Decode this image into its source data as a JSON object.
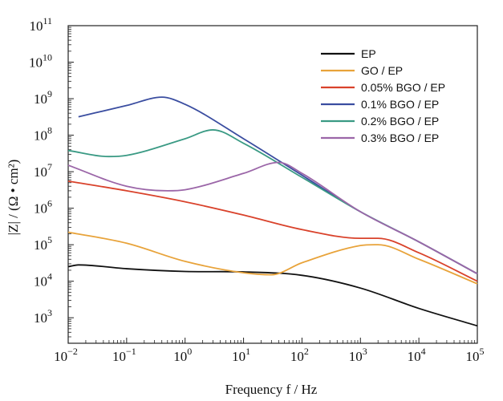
{
  "chart_data": {
    "type": "line",
    "xlabel": "Frequency f / Hz",
    "ylabel": "|Z| / (Ω • cm²)",
    "x_scale": "log",
    "y_scale": "log",
    "xlim": [
      0.01,
      100000
    ],
    "ylim": [
      200,
      100000000000
    ],
    "grid": false,
    "legend_position": "top-right",
    "x_ticks": [
      {
        "base": "10",
        "exp": "−2"
      },
      {
        "base": "10",
        "exp": "−1"
      },
      {
        "base": "10",
        "exp": "0"
      },
      {
        "base": "10",
        "exp": "1"
      },
      {
        "base": "10",
        "exp": "2"
      },
      {
        "base": "10",
        "exp": "3"
      },
      {
        "base": "10",
        "exp": "4"
      },
      {
        "base": "10",
        "exp": "5"
      }
    ],
    "y_ticks": [
      {
        "base": "10",
        "exp": "3"
      },
      {
        "base": "10",
        "exp": "4"
      },
      {
        "base": "10",
        "exp": "5"
      },
      {
        "base": "10",
        "exp": "6"
      },
      {
        "base": "10",
        "exp": "7"
      },
      {
        "base": "10",
        "exp": "8"
      },
      {
        "base": "10",
        "exp": "9"
      },
      {
        "base": "10",
        "exp": "10"
      },
      {
        "base": "10",
        "exp": "11"
      }
    ],
    "series": [
      {
        "name": "EP",
        "color": "#111111",
        "x": [
          0.01,
          0.015,
          0.1,
          1,
          10,
          100,
          1000,
          10000,
          100000
        ],
        "y": [
          25000,
          28000,
          22000,
          18500,
          18000,
          14500,
          6500,
          1800,
          600
        ]
      },
      {
        "name": "GO / EP",
        "color": "#e8a33a",
        "x": [
          0.01,
          0.1,
          1,
          10,
          30,
          100,
          1000,
          2000,
          10000,
          100000
        ],
        "y": [
          220000,
          110000,
          35000,
          17000,
          15000,
          32000,
          95000,
          100000,
          40000,
          8500
        ]
      },
      {
        "name": "0.05% BGO / EP",
        "color": "#d9422b",
        "x": [
          0.01,
          0.1,
          1,
          10,
          100,
          1000,
          2000,
          10000,
          100000
        ],
        "y": [
          5500000,
          3000000,
          1500000,
          650000,
          260000,
          150000,
          150000,
          60000,
          10000
        ]
      },
      {
        "name": "0.1% BGO / EP",
        "color": "#3a4da0",
        "x": [
          0.015,
          0.1,
          0.4,
          1,
          10,
          100,
          1000,
          10000,
          100000
        ],
        "y": [
          320000000,
          650000000,
          1100000000,
          700000000,
          80000000,
          8000000,
          800000,
          120000,
          16000
        ]
      },
      {
        "name": "0.2% BGO / EP",
        "color": "#3a9a84",
        "x": [
          0.01,
          0.05,
          0.1,
          1,
          3,
          10,
          100,
          1000,
          10000,
          100000
        ],
        "y": [
          38000000,
          26000000,
          28000000,
          80000000,
          140000000,
          60000000,
          7000000,
          800000,
          120000,
          16000
        ]
      },
      {
        "name": "0.3% BGO / EP",
        "color": "#9b66a8",
        "x": [
          0.01,
          0.1,
          0.5,
          1,
          10,
          40,
          100,
          1000,
          10000,
          100000
        ],
        "y": [
          15000000,
          4000000,
          3000000,
          3200000,
          9000000,
          18000000,
          9000000,
          800000,
          120000,
          16000
        ]
      }
    ]
  }
}
